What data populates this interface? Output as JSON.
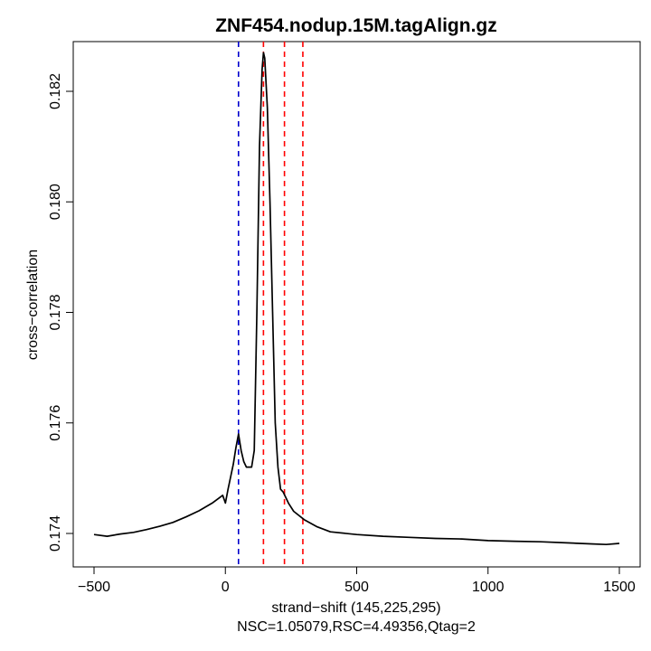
{
  "chart_data": {
    "type": "line",
    "title": "ZNF454.nodup.15M.tagAlign.gz",
    "xlabel": "strand−shift (145,225,295)",
    "subtitle": "NSC=1.05079,RSC=4.49356,Qtag=2",
    "ylabel": "cross−correlation",
    "xlim": [
      -500,
      1500
    ],
    "ylim": [
      0.1735,
      0.1828
    ],
    "x_ticks": [
      -500,
      0,
      500,
      1000,
      1500
    ],
    "x_tick_labels": [
      "−500",
      "0",
      "500",
      "1000",
      "1500"
    ],
    "y_ticks": [
      0.174,
      0.176,
      0.178,
      0.18,
      0.182
    ],
    "y_tick_labels": [
      "0.174",
      "0.176",
      "0.178",
      "0.180",
      "0.182"
    ],
    "grid": false,
    "series": [
      {
        "color": "#000000",
        "x": [
          -500,
          -450,
          -400,
          -350,
          -300,
          -250,
          -200,
          -150,
          -100,
          -50,
          -10,
          0,
          10,
          30,
          40,
          50,
          60,
          70,
          80,
          100,
          110,
          120,
          130,
          140,
          145,
          150,
          160,
          170,
          180,
          190,
          200,
          210,
          220,
          230,
          240,
          260,
          300,
          350,
          400,
          500,
          600,
          700,
          800,
          900,
          1000,
          1100,
          1200,
          1300,
          1400,
          1450,
          1500
        ],
        "y": [
          0.17398,
          0.17395,
          0.17399,
          0.17402,
          0.17407,
          0.17413,
          0.1742,
          0.1743,
          0.17441,
          0.17455,
          0.17469,
          0.17455,
          0.1748,
          0.17525,
          0.17555,
          0.1758,
          0.1755,
          0.1753,
          0.1752,
          0.1752,
          0.1755,
          0.178,
          0.181,
          0.1824,
          0.1827,
          0.1826,
          0.1817,
          0.18,
          0.178,
          0.176,
          0.1752,
          0.1748,
          0.17475,
          0.17465,
          0.17455,
          0.1744,
          0.17425,
          0.17412,
          0.17403,
          0.17398,
          0.17395,
          0.17393,
          0.17391,
          0.1739,
          0.17387,
          0.17386,
          0.17385,
          0.17383,
          0.17381,
          0.1738,
          0.17382
        ]
      }
    ],
    "vlines": [
      {
        "x": 50,
        "color": "#0000cc",
        "style": "dashed"
      },
      {
        "x": 145,
        "color": "#ff0000",
        "style": "dashed"
      },
      {
        "x": 225,
        "color": "#ff0000",
        "style": "dashed"
      },
      {
        "x": 295,
        "color": "#ff0000",
        "style": "dashed"
      }
    ]
  }
}
